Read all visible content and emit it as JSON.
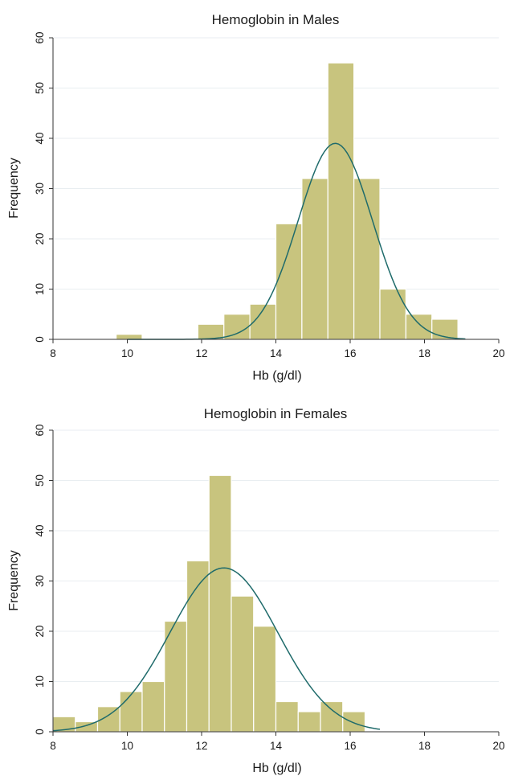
{
  "chart_data": [
    {
      "type": "bar",
      "title": "Hemoglobin in Males",
      "xlabel": "Hb (g/dl)",
      "ylabel": "Frequency",
      "xlim": [
        8,
        20
      ],
      "ylim": [
        0,
        60
      ],
      "xticks": [
        "8",
        "10",
        "12",
        "14",
        "16",
        "18",
        "20"
      ],
      "yticks": [
        "0",
        "10",
        "20",
        "30",
        "40",
        "50",
        "60"
      ],
      "grid": true,
      "bar_color": "#c8c47e",
      "curve_color": "#1f6b6b",
      "bins": [
        {
          "x0": 9.7,
          "x1": 10.4,
          "value": 1
        },
        {
          "x0": 11.9,
          "x1": 12.6,
          "value": 3
        },
        {
          "x0": 12.6,
          "x1": 13.3,
          "value": 5
        },
        {
          "x0": 13.3,
          "x1": 14.0,
          "value": 7
        },
        {
          "x0": 14.0,
          "x1": 14.7,
          "value": 23
        },
        {
          "x0": 14.7,
          "x1": 15.4,
          "value": 32
        },
        {
          "x0": 15.4,
          "x1": 16.1,
          "value": 55
        },
        {
          "x0": 16.1,
          "x1": 16.8,
          "value": 32
        },
        {
          "x0": 16.8,
          "x1": 17.5,
          "value": 10
        },
        {
          "x0": 17.5,
          "x1": 18.2,
          "value": 5
        },
        {
          "x0": 18.2,
          "x1": 18.9,
          "value": 4
        }
      ],
      "normal_curve": {
        "mean": 15.6,
        "sd": 1.0,
        "peak": 39,
        "x_start": 10.0,
        "x_end": 19.1
      }
    },
    {
      "type": "bar",
      "title": "Hemoglobin in Females",
      "xlabel": "Hb (g/dl)",
      "ylabel": "Frequency",
      "xlim": [
        8,
        20
      ],
      "ylim": [
        0,
        60
      ],
      "xticks": [
        "8",
        "10",
        "12",
        "14",
        "16",
        "18",
        "20"
      ],
      "yticks": [
        "0",
        "10",
        "20",
        "30",
        "40",
        "50",
        "60"
      ],
      "grid": true,
      "bar_color": "#c8c47e",
      "curve_color": "#1f6b6b",
      "bins": [
        {
          "x0": 8.0,
          "x1": 8.6,
          "value": 3
        },
        {
          "x0": 8.6,
          "x1": 9.2,
          "value": 2
        },
        {
          "x0": 9.2,
          "x1": 9.8,
          "value": 5
        },
        {
          "x0": 9.8,
          "x1": 10.4,
          "value": 8
        },
        {
          "x0": 10.4,
          "x1": 11.0,
          "value": 10
        },
        {
          "x0": 11.0,
          "x1": 11.6,
          "value": 22
        },
        {
          "x0": 11.6,
          "x1": 12.2,
          "value": 34
        },
        {
          "x0": 12.2,
          "x1": 12.8,
          "value": 51
        },
        {
          "x0": 12.8,
          "x1": 13.4,
          "value": 27
        },
        {
          "x0": 13.4,
          "x1": 14.0,
          "value": 21
        },
        {
          "x0": 14.0,
          "x1": 14.6,
          "value": 6
        },
        {
          "x0": 14.6,
          "x1": 15.2,
          "value": 4
        },
        {
          "x0": 15.2,
          "x1": 15.8,
          "value": 6
        },
        {
          "x0": 15.8,
          "x1": 16.4,
          "value": 4
        }
      ],
      "normal_curve": {
        "mean": 12.6,
        "sd": 1.45,
        "peak": 32.6,
        "x_start": 8.0,
        "x_end": 16.8
      }
    }
  ]
}
